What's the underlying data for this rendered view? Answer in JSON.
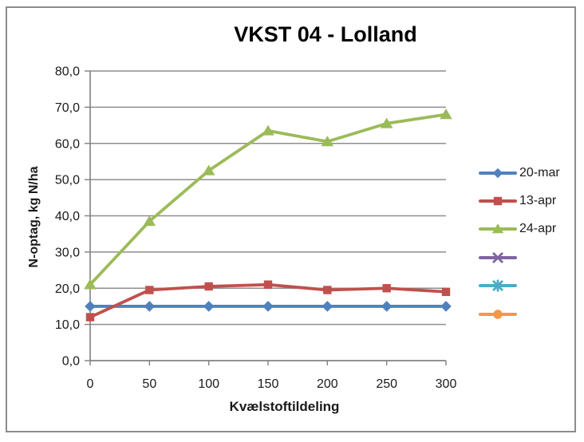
{
  "chart_data": {
    "type": "line",
    "title": "VKST 04 - Lolland",
    "xlabel": "Kvælstoftildeling",
    "ylabel": "N-optag, kg N/ha",
    "xlim": [
      0,
      300
    ],
    "ylim": [
      0,
      80
    ],
    "x": [
      0,
      50,
      100,
      150,
      200,
      250,
      300
    ],
    "x_tick_labels": [
      "0",
      "50",
      "100",
      "150",
      "200",
      "250",
      "300"
    ],
    "y_tick_values": [
      0,
      10,
      20,
      30,
      40,
      50,
      60,
      70,
      80
    ],
    "y_tick_labels": [
      "0,0",
      "10,0",
      "20,0",
      "30,0",
      "40,0",
      "50,0",
      "60,0",
      "70,0",
      "80,0"
    ],
    "grid": "horizontal-major",
    "legend_position": "right",
    "series": [
      {
        "name": "20-mar",
        "color": "#4F81BD",
        "marker": "diamond",
        "values": [
          15,
          15,
          15,
          15,
          15,
          15,
          15
        ]
      },
      {
        "name": "13-apr",
        "color": "#C0504D",
        "marker": "square",
        "values": [
          12,
          19.5,
          20.5,
          21,
          19.5,
          20,
          19
        ]
      },
      {
        "name": "24-apr",
        "color": "#9BBB59",
        "marker": "triangle",
        "values": [
          21,
          38.5,
          52.5,
          63.5,
          60.5,
          65.5,
          68
        ]
      },
      {
        "name": "",
        "color": "#8064A2",
        "marker": "x",
        "values": []
      },
      {
        "name": "",
        "color": "#4BACC6",
        "marker": "asterisk",
        "values": []
      },
      {
        "name": "",
        "color": "#F79646",
        "marker": "circle",
        "values": []
      }
    ],
    "colors": {
      "gridline": "#8E8E8E",
      "axis": "#808080",
      "text": "#1A1A1A",
      "frame_border": "#8C8C8C",
      "background": "#FFFFFF"
    }
  }
}
